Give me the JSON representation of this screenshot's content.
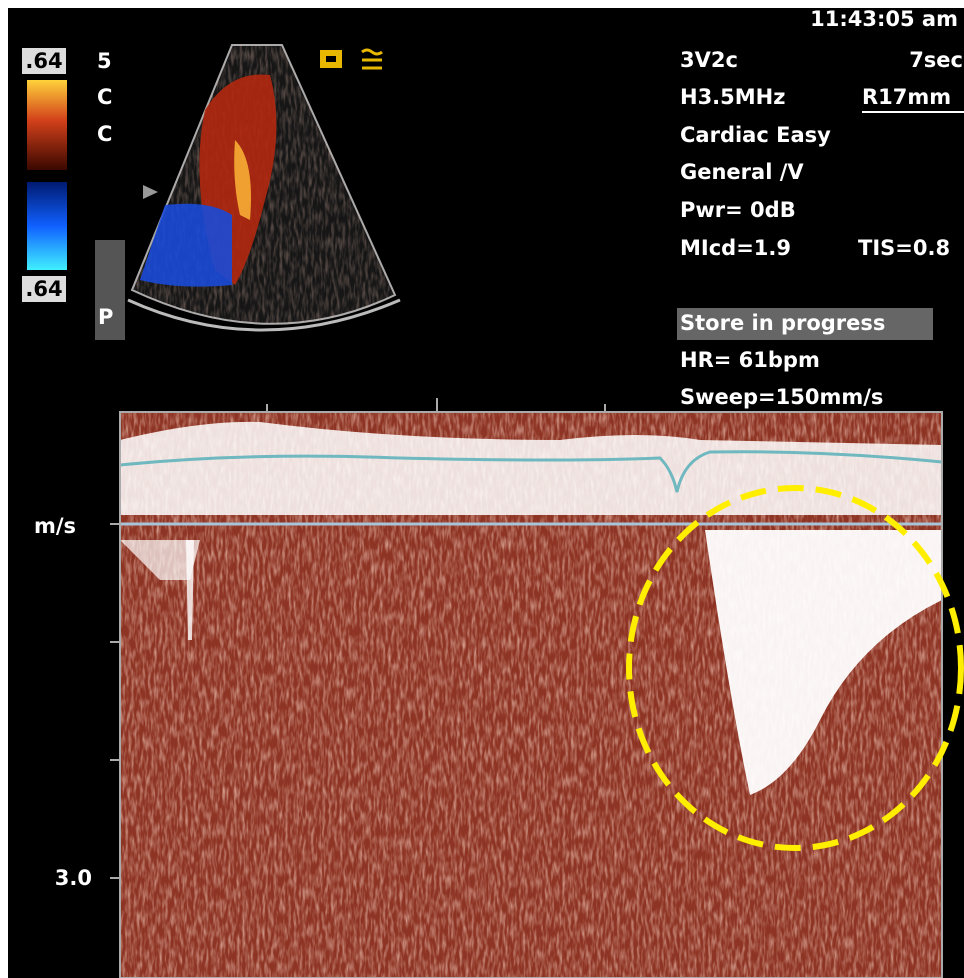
{
  "header": {
    "time": "11:43:05 am"
  },
  "color_scale": {
    "top": ".64",
    "bottom": ".64"
  },
  "left_labels": {
    "line1": "5",
    "line2": "C",
    "line3": "C",
    "button": "P"
  },
  "settings": {
    "probe": "3V2c",
    "duration": "7sec",
    "frequency": "H3.5MHz",
    "depth": "R17mm",
    "preset": "Cardiac Easy",
    "application": "General /V",
    "power": "Pwr=  0dB",
    "mi": "MIcd=1.9",
    "tis": "TIS=0.8"
  },
  "status": {
    "store": "Store in progress",
    "heart_rate": "HR=  61bpm",
    "sweep": "Sweep=150mm/s"
  },
  "doppler": {
    "unit": "m/s",
    "scale_max": "3.0"
  }
}
